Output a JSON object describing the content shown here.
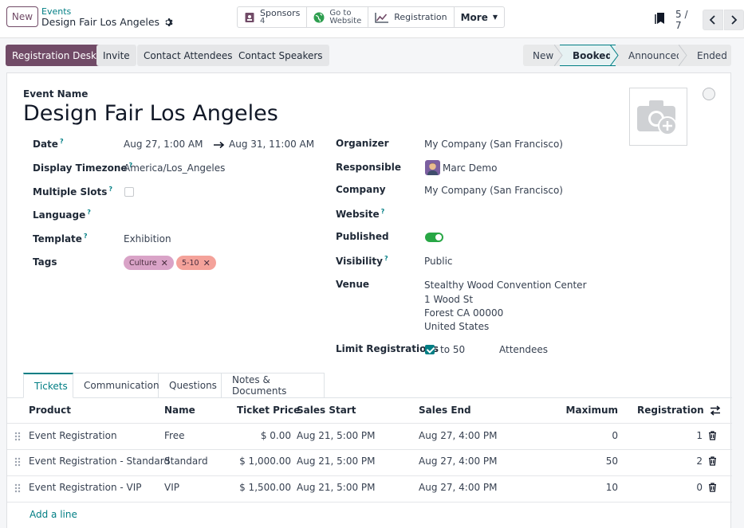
{
  "topbar": {
    "new_label": "New",
    "breadcrumb_parent": "Events",
    "breadcrumb_current": "Design Fair Los Angeles",
    "smart_buttons": {
      "sponsors_label": "Sponsors",
      "sponsors_count": "4",
      "website_line1": "Go to",
      "website_line2": "Website",
      "registration_label": "Registration",
      "more_label": "More"
    },
    "pager_value": "5 / 7"
  },
  "actions": {
    "registration_desk": "Registration Desk",
    "invite": "Invite",
    "contact_attendees": "Contact Attendees",
    "contact_speakers": "Contact Speakers"
  },
  "stages": [
    "New",
    "Booked",
    "Announced",
    "Ended"
  ],
  "active_stage": "Booked",
  "form": {
    "event_name_label": "Event Name",
    "event_name": "Design Fair Los Angeles",
    "left": {
      "date_label": "Date",
      "date_start": "Aug 27, 1:00 AM",
      "date_end": "Aug 31, 11:00 AM",
      "timezone_label": "Display Timezone",
      "timezone": "America/Los_Angeles",
      "slots_label": "Multiple Slots",
      "language_label": "Language",
      "template_label": "Template",
      "template": "Exhibition",
      "tags_label": "Tags",
      "tags": [
        {
          "label": "Culture",
          "color": "#d9a3c7"
        },
        {
          "label": "5-10",
          "color": "#f4a29a"
        }
      ]
    },
    "right": {
      "organizer_label": "Organizer",
      "organizer": "My Company (San Francisco)",
      "responsible_label": "Responsible",
      "responsible": "Marc Demo",
      "company_label": "Company",
      "company": "My Company (San Francisco)",
      "website_label": "Website",
      "published_label": "Published",
      "visibility_label": "Visibility",
      "visibility": "Public",
      "venue_label": "Venue",
      "venue_lines": [
        "Stealthy Wood Convention Center",
        "1 Wood St",
        "Forest CA 00000",
        "United States"
      ],
      "limit_label": "Limit Registrations",
      "limit_to": "to 50",
      "limit_unit": "Attendees"
    }
  },
  "tabs": [
    "Tickets",
    "Communication",
    "Questions",
    "Notes & Documents"
  ],
  "tickets": {
    "columns": [
      "Product",
      "Name",
      "Ticket Price",
      "Sales Start",
      "Sales End",
      "Maximum",
      "Registration"
    ],
    "rows": [
      {
        "product": "Event Registration",
        "name": "Free",
        "price": "$ 0.00",
        "start": "Aug 21, 5:00 PM",
        "end": "Aug 27, 4:00 PM",
        "maximum": "0",
        "registration": "1"
      },
      {
        "product": "Event Registration - Standard",
        "name": "Standard",
        "price": "$ 1,000.00",
        "start": "Aug 21, 5:00 PM",
        "end": "Aug 27, 4:00 PM",
        "maximum": "50",
        "registration": "2"
      },
      {
        "product": "Event Registration - VIP",
        "name": "VIP",
        "price": "$ 1,500.00",
        "start": "Aug 21, 5:00 PM",
        "end": "Aug 27, 4:00 PM",
        "maximum": "10",
        "registration": "0"
      }
    ],
    "add_line": "Add a line"
  },
  "colors": {
    "primary": "#714b67",
    "teal": "#017e84",
    "published_on": "#28a745"
  }
}
